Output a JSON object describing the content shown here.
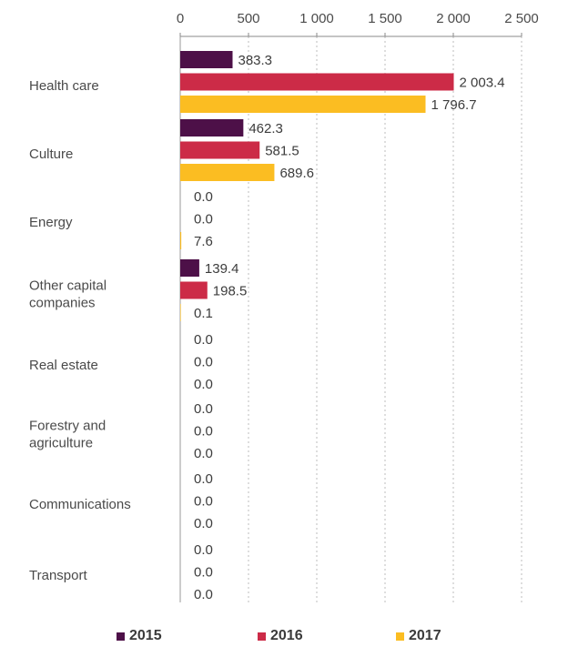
{
  "chart_data": {
    "type": "bar",
    "orientation": "horizontal",
    "categories": [
      [
        "Health care"
      ],
      [
        "Culture"
      ],
      [
        "Energy"
      ],
      [
        "Other capital",
        "companies"
      ],
      [
        "Real estate"
      ],
      [
        "Forestry and",
        "agriculture"
      ],
      [
        "Communications"
      ],
      [
        "Transport"
      ]
    ],
    "series": [
      {
        "name": "2015",
        "color": "#4d1048",
        "values": [
          383.3,
          462.3,
          0.0,
          139.4,
          0.0,
          0.0,
          0.0,
          0.0
        ],
        "labels": [
          "383.3",
          "462.3",
          "0.0",
          "139.4",
          "0.0",
          "0.0",
          "0.0",
          "0.0"
        ]
      },
      {
        "name": "2016",
        "color": "#cc2b47",
        "values": [
          2003.4,
          581.5,
          0.0,
          198.5,
          0.0,
          0.0,
          0.0,
          0.0
        ],
        "labels": [
          "2 003.4",
          "581.5",
          "0.0",
          "198.5",
          "0.0",
          "0.0",
          "0.0",
          "0.0"
        ]
      },
      {
        "name": "2017",
        "color": "#fbbd22",
        "values": [
          1796.7,
          689.6,
          7.6,
          0.1,
          0.0,
          0.0,
          0.0,
          0.0
        ],
        "labels": [
          "1 796.7",
          "689.6",
          "7.6",
          "0.1",
          "0.0",
          "0.0",
          "0.0",
          "0.0"
        ]
      }
    ],
    "xlim": [
      0,
      2500
    ],
    "ticks": [
      0,
      500,
      1000,
      1500,
      2000,
      2500
    ],
    "tick_labels": [
      "0",
      "500",
      "1 000",
      "1 500",
      "2 000",
      "2 500"
    ],
    "axis_position": "top",
    "grid": "dotted vertical",
    "legend_position": "bottom"
  }
}
